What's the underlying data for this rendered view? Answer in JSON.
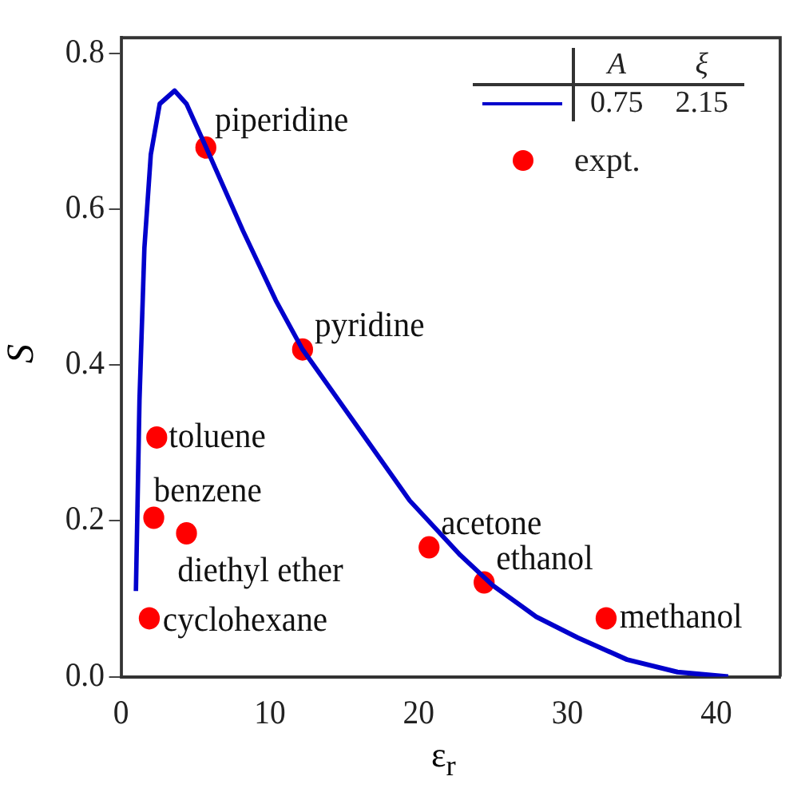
{
  "chart_data": {
    "type": "scatter",
    "xlabel": "ε$_{r}$",
    "ylabel": "S",
    "xlim": [
      0,
      44.3
    ],
    "ylim": [
      0,
      0.82
    ],
    "xticks": [
      0,
      10,
      20,
      30,
      40
    ],
    "yticks": [
      {
        "value": 0,
        "label": "0.0"
      },
      {
        "value": 0.2,
        "label": "0.2"
      },
      {
        "value": 0.4,
        "label": "0.4"
      },
      {
        "value": 0.6,
        "label": "0.6"
      },
      {
        "value": 0.8,
        "label": "0.8"
      }
    ],
    "grid": false,
    "legend": "top right",
    "series": [
      {
        "type": "line",
        "color": "#0000cc",
        "marker": "none",
        "line_style": "solid",
        "x": [
          1.0,
          1.24,
          1.57,
          2.0,
          2.6,
          3.6,
          4.4,
          5.7,
          8.2,
          10.4,
          12.2,
          16.1,
          19.4,
          22.8,
          25,
          27.9,
          30.7,
          34,
          37.4,
          40.8
        ],
        "values": [
          0.11,
          0.355,
          0.55,
          0.67,
          0.735,
          0.752,
          0.735,
          0.68,
          0.572,
          0.483,
          0.42,
          0.315,
          0.226,
          0.156,
          0.117,
          0.077,
          0.05,
          0.022,
          0.006,
          0.0
        ]
      },
      {
        "type": "scatter",
        "name": "expt.",
        "color": "#ff0000",
        "marker": "circle",
        "x": [
          5.7,
          12.2,
          2.4,
          2.2,
          4.4,
          1.9,
          20.7,
          24.4,
          32.6
        ],
        "values": [
          0.679,
          0.42,
          0.307,
          0.204,
          0.184,
          0.075,
          0.166,
          0.121,
          0.075
        ]
      }
    ],
    "annotations": [
      {
        "text": "piperidine",
        "x": 5.7,
        "y": 0.679
      },
      {
        "text": "pyridine",
        "x": 12.2,
        "y": 0.42
      },
      {
        "text": "toluene",
        "x": 2.4,
        "y": 0.307
      },
      {
        "text": "benzene",
        "x": 2.2,
        "y": 0.204
      },
      {
        "text": "diethyl ether",
        "x": 4.4,
        "y": 0.184
      },
      {
        "text": "cyclohexane",
        "x": 1.9,
        "y": 0.075
      },
      {
        "text": "acetone",
        "x": 20.7,
        "y": 0.166
      },
      {
        "text": "ethanol",
        "x": 24.4,
        "y": 0.121
      },
      {
        "text": "methanol",
        "x": 32.6,
        "y": 0.075
      },
      "A",
      "ξ",
      "0.75",
      "2.15"
    ]
  }
}
